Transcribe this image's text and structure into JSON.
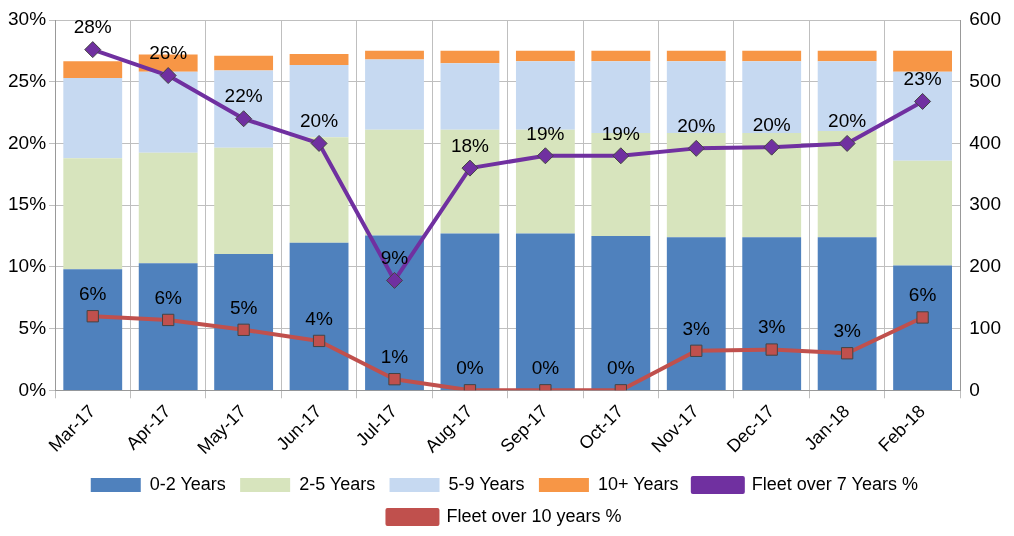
{
  "chart_data": {
    "type": "bar",
    "stacked": true,
    "categories": [
      "Mar-17",
      "Apr-17",
      "May-17",
      "Jun-17",
      "Jul-17",
      "Aug-17",
      "Sep-17",
      "Oct-17",
      "Nov-17",
      "Dec-17",
      "Jan-18",
      "Feb-18"
    ],
    "series": [
      {
        "name": "0-2 Years",
        "color": "#4f81bd",
        "axis": "y2",
        "values": [
          196,
          206,
          221,
          239,
          251,
          254,
          254,
          250,
          248,
          248,
          248,
          202
        ]
      },
      {
        "name": "2-5 Years",
        "color": "#d7e4bd",
        "axis": "y2",
        "values": [
          180,
          179,
          172,
          171,
          171,
          168,
          168,
          167,
          169,
          169,
          172,
          170
        ]
      },
      {
        "name": "5-9 Years",
        "color": "#c6d9f1",
        "axis": "y2",
        "values": [
          130,
          131,
          125,
          117,
          114,
          108,
          111,
          116,
          116,
          116,
          113,
          144
        ]
      },
      {
        "name": "10+ Years",
        "color": "#f79646",
        "axis": "y2",
        "values": [
          27,
          28,
          24,
          18,
          14,
          20,
          17,
          17,
          17,
          17,
          17,
          34
        ]
      },
      {
        "name": "Fleet over 7 Years %",
        "type": "line",
        "color": "#7030a0",
        "marker": "diamond",
        "values": [
          27.6,
          25.5,
          22.0,
          20.0,
          8.9,
          18.0,
          19.0,
          19.0,
          19.6,
          19.7,
          20.0,
          23.4
        ],
        "value_labels": [
          "28%",
          "26%",
          "22%",
          "20%",
          "9%",
          "18%",
          "19%",
          "19%",
          "20%",
          "20%",
          "20%",
          "23%"
        ]
      },
      {
        "name": "Fleet over 10 years %",
        "type": "line",
        "color": "#c0504d",
        "marker": "square",
        "values": [
          6.0,
          5.7,
          4.9,
          4.0,
          0.9,
          0,
          0,
          0,
          3.2,
          3.3,
          3.0,
          5.9
        ],
        "value_labels": [
          "6%",
          "6%",
          "5%",
          "4%",
          "1%",
          "0%",
          "0%",
          "0%",
          "3%",
          "3%",
          "3%",
          "6%"
        ]
      }
    ],
    "ylim": [
      0,
      30
    ],
    "yticks": [
      {
        "value": 0,
        "label": "0%"
      },
      {
        "value": 5,
        "label": "5%"
      },
      {
        "value": 10,
        "label": "10%"
      },
      {
        "value": 15,
        "label": "15%"
      },
      {
        "value": 20,
        "label": "20%"
      },
      {
        "value": 25,
        "label": "25%"
      },
      {
        "value": 30,
        "label": "30%"
      }
    ],
    "y2lim": [
      0,
      600
    ],
    "y2ticks": [
      0,
      100,
      200,
      300,
      400,
      500,
      600
    ],
    "grid": true,
    "legend": "bottom"
  }
}
